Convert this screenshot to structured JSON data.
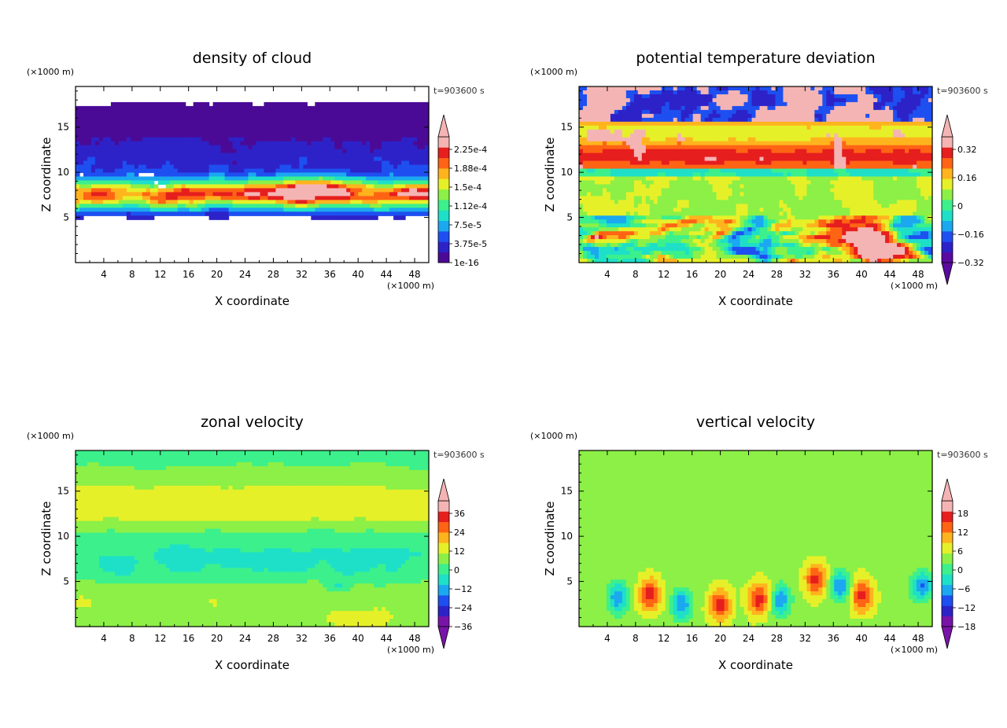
{
  "chart_data": [
    {
      "type": "heatmap",
      "title": "density of cloud",
      "xlabel": "X coordinate",
      "ylabel": "Z coordinate",
      "x_unit": "(×1000 m)",
      "y_unit": "(×1000 m)",
      "time_label": "t=903600 s",
      "xlim": [
        0,
        50
      ],
      "ylim": [
        0,
        19.5
      ],
      "x_ticks": [
        "4",
        "8",
        "12",
        "16",
        "20",
        "24",
        "28",
        "32",
        "36",
        "40",
        "44",
        "48"
      ],
      "y_ticks": [
        "5",
        "10",
        "15"
      ],
      "colorbar": {
        "labels": [
          "2.25e-4",
          "1.88e-4",
          "1.5e-4",
          "1.12e-4",
          "7.5e-5",
          "3.75e-5",
          "1e-16"
        ],
        "colors": [
          "#4b0a96",
          "#2d22c8",
          "#1e4ff0",
          "#1ba8f0",
          "#1ee0c8",
          "#3cf08c",
          "#8cf046",
          "#e6f028",
          "#ffb41e",
          "#ff6414",
          "#e61e1e",
          "#f5b4b4"
        ],
        "min_arrow": false,
        "max_arrow": true
      }
    },
    {
      "type": "heatmap",
      "title": "potential temperature deviation",
      "xlabel": "X coordinate",
      "ylabel": "Z coordinate",
      "x_unit": "(×1000 m)",
      "y_unit": "(×1000 m)",
      "time_label": "t=903600 s",
      "xlim": [
        0,
        50
      ],
      "ylim": [
        0,
        19.5
      ],
      "x_ticks": [
        "4",
        "8",
        "12",
        "16",
        "20",
        "24",
        "28",
        "32",
        "36",
        "40",
        "44",
        "48"
      ],
      "y_ticks": [
        "5",
        "10",
        "15"
      ],
      "colorbar": {
        "labels": [
          "0.32",
          "0.16",
          "0",
          "−0.16",
          "−0.32"
        ],
        "colors": [
          "#5a0aa0",
          "#2d22c8",
          "#1e4ff0",
          "#1ba8f0",
          "#1ee0c8",
          "#3cf08c",
          "#8cf046",
          "#e6f028",
          "#ffb41e",
          "#ff6414",
          "#e61e1e",
          "#f5b4b4"
        ],
        "min_arrow": true,
        "max_arrow": true
      }
    },
    {
      "type": "heatmap",
      "title": "zonal velocity",
      "xlabel": "X coordinate",
      "ylabel": "Z coordinate",
      "x_unit": "(×1000 m)",
      "y_unit": "(×1000 m)",
      "time_label": "t=903600 s",
      "xlim": [
        0,
        50
      ],
      "ylim": [
        0,
        19.5
      ],
      "x_ticks": [
        "4",
        "8",
        "12",
        "16",
        "20",
        "24",
        "28",
        "32",
        "36",
        "40",
        "44",
        "48"
      ],
      "y_ticks": [
        "5",
        "10",
        "15"
      ],
      "colorbar": {
        "labels": [
          "36",
          "24",
          "12",
          "0",
          "−12",
          "−24",
          "−36"
        ],
        "colors": [
          "#7a14a8",
          "#2d22c8",
          "#1e4ff0",
          "#1ba8f0",
          "#1ee0c8",
          "#3cf08c",
          "#8cf046",
          "#e6f028",
          "#ffb41e",
          "#ff6414",
          "#e61e1e",
          "#f5b4b4"
        ],
        "min_arrow": true,
        "max_arrow": true
      }
    },
    {
      "type": "heatmap",
      "title": "vertical velocity",
      "xlabel": "X coordinate",
      "ylabel": "Z coordinate",
      "x_unit": "(×1000 m)",
      "y_unit": "(×1000 m)",
      "time_label": "t=903600 s",
      "xlim": [
        0,
        50
      ],
      "ylim": [
        0,
        19.5
      ],
      "x_ticks": [
        "4",
        "8",
        "12",
        "16",
        "20",
        "24",
        "28",
        "32",
        "36",
        "40",
        "44",
        "48"
      ],
      "y_ticks": [
        "5",
        "10",
        "15"
      ],
      "colorbar": {
        "labels": [
          "18",
          "12",
          "6",
          "0",
          "−6",
          "−12",
          "−18"
        ],
        "colors": [
          "#7a14a8",
          "#2d22c8",
          "#1e4ff0",
          "#1ba8f0",
          "#1ee0c8",
          "#3cf08c",
          "#8cf046",
          "#e6f028",
          "#ffb41e",
          "#ff6414",
          "#e61e1e",
          "#f5b4b4"
        ],
        "min_arrow": true,
        "max_arrow": true
      }
    }
  ]
}
